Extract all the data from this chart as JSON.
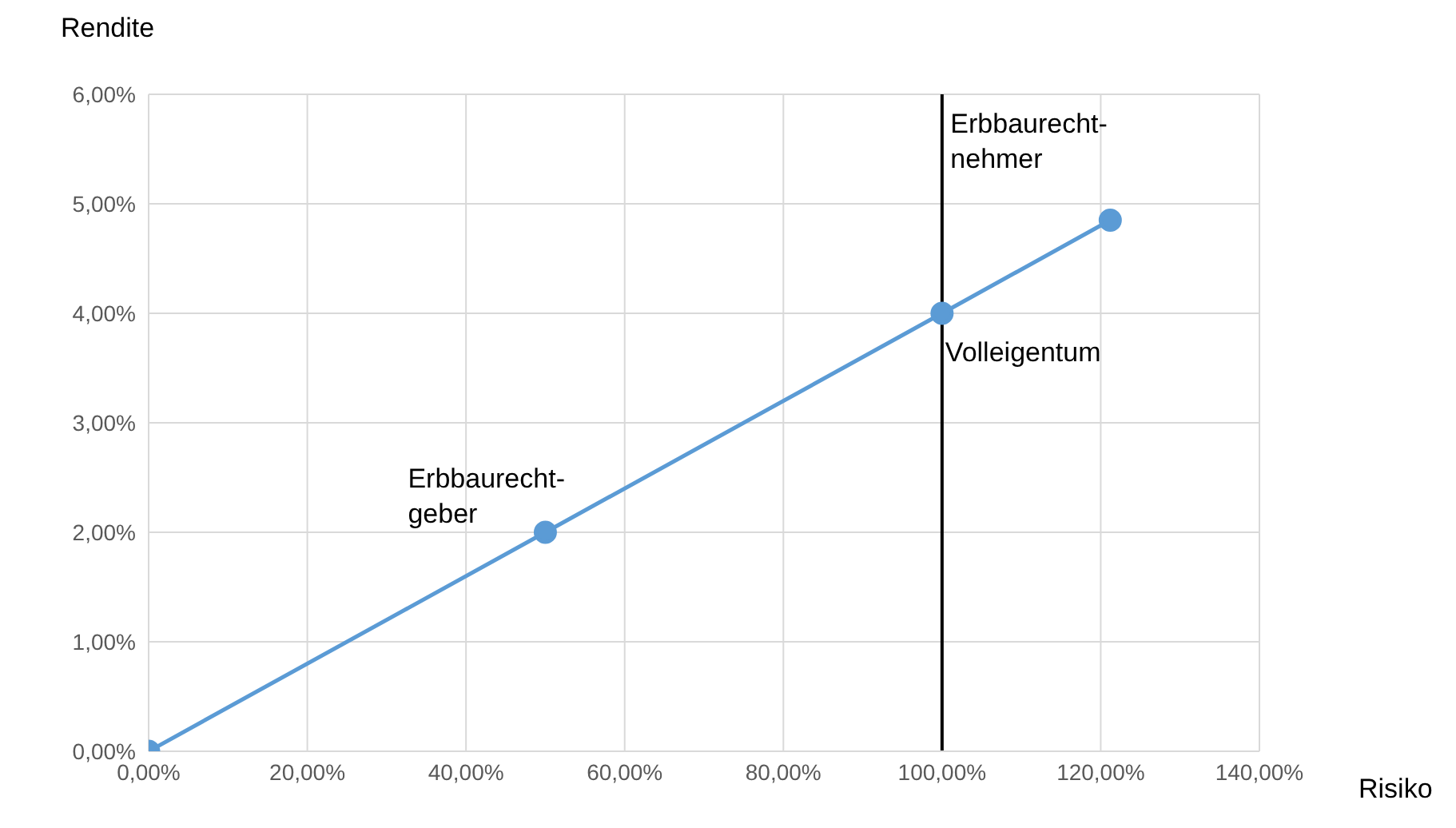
{
  "chart_data": {
    "type": "line",
    "xlabel": "Risiko",
    "ylabel": "Rendite",
    "x": [
      0,
      50,
      100,
      121.2
    ],
    "series": [
      {
        "color": "#5b9bd5",
        "values": [
          0,
          2,
          4,
          4.85
        ]
      }
    ],
    "xlim": [
      0,
      140
    ],
    "ylim": [
      0,
      6
    ],
    "xticks": [
      {
        "value": 0,
        "label": "0,00%"
      },
      {
        "value": 20,
        "label": "20,00%"
      },
      {
        "value": 40,
        "label": "40,00%"
      },
      {
        "value": 60,
        "label": "60,00%"
      },
      {
        "value": 80,
        "label": "80,00%"
      },
      {
        "value": 100,
        "label": "100,00%"
      },
      {
        "value": 120,
        "label": "120,00%"
      },
      {
        "value": 140,
        "label": "140,00%"
      }
    ],
    "yticks": [
      {
        "value": 0,
        "label": "0,00%"
      },
      {
        "value": 1,
        "label": "1,00%"
      },
      {
        "value": 2,
        "label": "2,00%"
      },
      {
        "value": 3,
        "label": "3,00%"
      },
      {
        "value": 4,
        "label": "4,00%"
      },
      {
        "value": 5,
        "label": "5,00%"
      },
      {
        "value": 6,
        "label": "6,00%"
      }
    ],
    "ref_lines": [
      {
        "axis": "x",
        "value": 100,
        "color": "#000000"
      }
    ],
    "annotations": [
      "Erbbaurecht-\ngeber",
      "Erbbaurecht-\nnehmer",
      "Volleigentum"
    ],
    "grid": true,
    "marker": "circle",
    "line_style": "solid"
  }
}
